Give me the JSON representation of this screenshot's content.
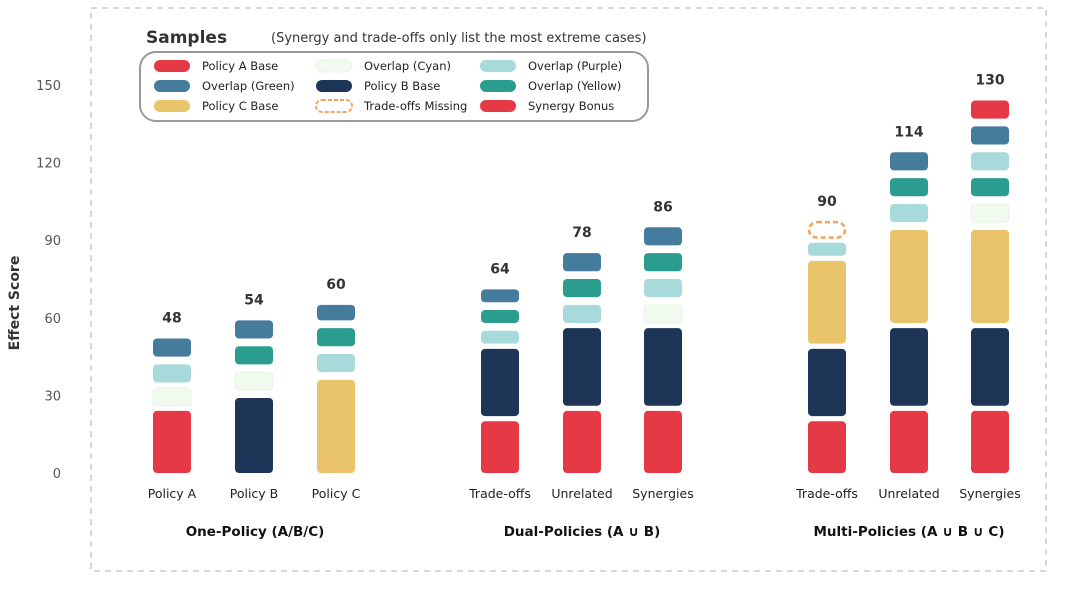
{
  "chart_data": {
    "type": "bar",
    "stacked": true,
    "ylabel": "Effect Score",
    "ylim": [
      0,
      150
    ],
    "yticks": [
      0,
      30,
      60,
      90,
      120,
      150
    ],
    "legend": {
      "title": "Samples",
      "note": "(Synergy and trade-offs only list the most extreme cases)",
      "position": "top-left",
      "entries": [
        {
          "key": "a_base",
          "label": "Policy A Base",
          "color": "#e63946"
        },
        {
          "key": "overlap_green",
          "label": "Overlap (Green)",
          "color": "#457b9d"
        },
        {
          "key": "c_base",
          "label": "Policy C Base",
          "color": "#e9c46a"
        },
        {
          "key": "overlap_cyan",
          "label": "Overlap (Cyan)",
          "color": "#f1faee"
        },
        {
          "key": "b_base",
          "label": "Policy B Base",
          "color": "#1d3557"
        },
        {
          "key": "tradeoffs_missing",
          "label": "Trade-offs Missing",
          "color": "#f4a261",
          "style": "dashed"
        },
        {
          "key": "overlap_purple",
          "label": "Overlap (Purple)",
          "color": "#a8dadc"
        },
        {
          "key": "overlap_yellow",
          "label": "Overlap (Yellow)",
          "color": "#2a9d8f"
        },
        {
          "key": "synergy_bonus",
          "label": "Synergy Bonus",
          "color": "#e63946"
        }
      ]
    },
    "groups": [
      {
        "label": "One-Policy (A/B/C)",
        "bars": [
          {
            "label": "Policy A",
            "total": "48",
            "segments": [
              {
                "key": "a_base",
                "from": 0,
                "to": 24
              },
              {
                "key": "overlap_cyan",
                "from": 26,
                "to": 33
              },
              {
                "key": "overlap_purple",
                "from": 35,
                "to": 42
              },
              {
                "key": "overlap_green",
                "from": 45,
                "to": 52
              }
            ]
          },
          {
            "label": "Policy B",
            "total": "54",
            "segments": [
              {
                "key": "b_base",
                "from": 0,
                "to": 29
              },
              {
                "key": "overlap_cyan",
                "from": 32,
                "to": 39
              },
              {
                "key": "overlap_yellow",
                "from": 42,
                "to": 49
              },
              {
                "key": "overlap_green",
                "from": 52,
                "to": 59
              }
            ]
          },
          {
            "label": "Policy C",
            "total": "60",
            "segments": [
              {
                "key": "c_base",
                "from": 0,
                "to": 36
              },
              {
                "key": "overlap_purple",
                "from": 39,
                "to": 46
              },
              {
                "key": "overlap_yellow",
                "from": 49,
                "to": 56
              },
              {
                "key": "overlap_green",
                "from": 59,
                "to": 65
              }
            ]
          }
        ]
      },
      {
        "label": "Dual-Policies (A ∪ B)",
        "bars": [
          {
            "label": "Trade-offs",
            "total": "64",
            "segments": [
              {
                "key": "a_base",
                "from": 0,
                "to": 20
              },
              {
                "key": "b_base",
                "from": 22,
                "to": 48
              },
              {
                "key": "overlap_purple",
                "from": 50,
                "to": 55
              },
              {
                "key": "overlap_yellow",
                "from": 58,
                "to": 63
              },
              {
                "key": "overlap_green",
                "from": 66,
                "to": 71
              }
            ]
          },
          {
            "label": "Unrelated",
            "total": "78",
            "segments": [
              {
                "key": "a_base",
                "from": 0,
                "to": 24
              },
              {
                "key": "b_base",
                "from": 26,
                "to": 56
              },
              {
                "key": "overlap_purple",
                "from": 58,
                "to": 65
              },
              {
                "key": "overlap_yellow",
                "from": 68,
                "to": 75
              },
              {
                "key": "overlap_green",
                "from": 78,
                "to": 85
              }
            ]
          },
          {
            "label": "Synergies",
            "total": "86",
            "segments": [
              {
                "key": "a_base",
                "from": 0,
                "to": 24
              },
              {
                "key": "b_base",
                "from": 26,
                "to": 56
              },
              {
                "key": "overlap_cyan",
                "from": 58,
                "to": 65
              },
              {
                "key": "overlap_purple",
                "from": 68,
                "to": 75
              },
              {
                "key": "overlap_yellow",
                "from": 78,
                "to": 85
              },
              {
                "key": "overlap_green",
                "from": 88,
                "to": 95
              }
            ]
          }
        ]
      },
      {
        "label": "Multi-Policies (A ∪ B ∪ C)",
        "bars": [
          {
            "label": "Trade-offs",
            "total": "90",
            "segments": [
              {
                "key": "a_base",
                "from": 0,
                "to": 20
              },
              {
                "key": "b_base",
                "from": 22,
                "to": 48
              },
              {
                "key": "c_base",
                "from": 50,
                "to": 82
              },
              {
                "key": "overlap_purple",
                "from": 84,
                "to": 89
              },
              {
                "key": "tradeoffs_missing",
                "from": 91,
                "to": 97
              }
            ]
          },
          {
            "label": "Unrelated",
            "total": "114",
            "segments": [
              {
                "key": "a_base",
                "from": 0,
                "to": 24
              },
              {
                "key": "b_base",
                "from": 26,
                "to": 56
              },
              {
                "key": "c_base",
                "from": 58,
                "to": 94
              },
              {
                "key": "overlap_purple",
                "from": 97,
                "to": 104
              },
              {
                "key": "overlap_yellow",
                "from": 107,
                "to": 114
              },
              {
                "key": "overlap_green",
                "from": 117,
                "to": 124
              }
            ]
          },
          {
            "label": "Synergies",
            "total": "130",
            "segments": [
              {
                "key": "a_base",
                "from": 0,
                "to": 24
              },
              {
                "key": "b_base",
                "from": 26,
                "to": 56
              },
              {
                "key": "c_base",
                "from": 58,
                "to": 94
              },
              {
                "key": "overlap_cyan",
                "from": 97,
                "to": 104
              },
              {
                "key": "overlap_yellow",
                "from": 107,
                "to": 114
              },
              {
                "key": "overlap_purple",
                "from": 117,
                "to": 124
              },
              {
                "key": "overlap_green",
                "from": 127,
                "to": 134
              },
              {
                "key": "synergy_bonus",
                "from": 137,
                "to": 144
              }
            ]
          }
        ]
      }
    ]
  }
}
